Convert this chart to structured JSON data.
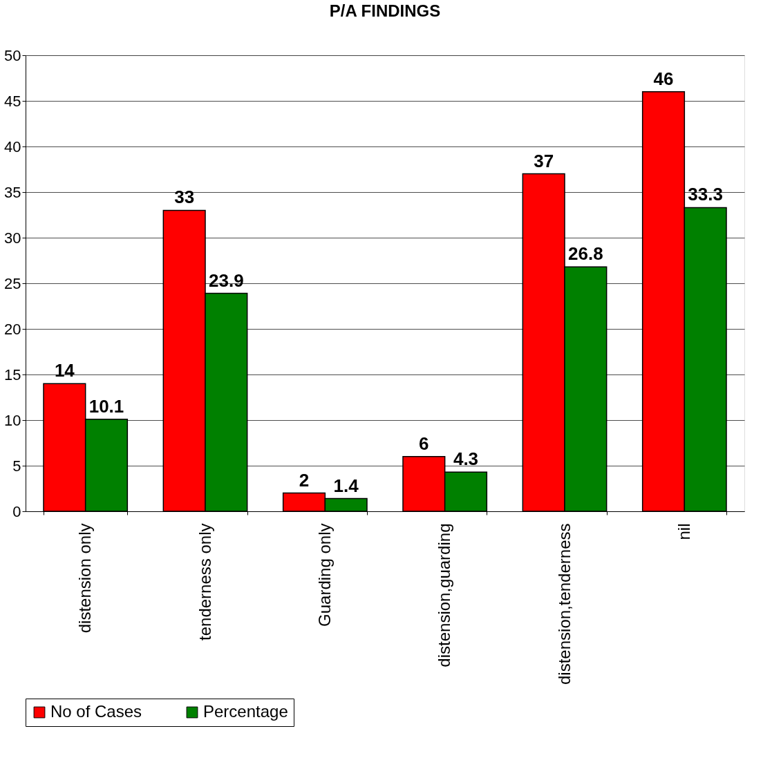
{
  "chart_data": {
    "type": "bar",
    "title": "P/A FINDINGS",
    "categories": [
      "distension only",
      "tenderness only",
      "Guarding only",
      "distension,guarding",
      "distension,tenderness",
      "nil"
    ],
    "series": [
      {
        "name": "No of Cases",
        "color": "#ff0000",
        "values": [
          14,
          33,
          2,
          6,
          37,
          46
        ]
      },
      {
        "name": "Percentage",
        "color": "#008000",
        "values": [
          10.1,
          23.9,
          1.4,
          4.3,
          26.8,
          33.3
        ]
      }
    ],
    "ylim": [
      0,
      50
    ],
    "yticks": [
      0,
      5,
      10,
      15,
      20,
      25,
      30,
      35,
      40,
      45,
      50
    ],
    "grid": "y",
    "legend": "bottom",
    "data_labels": true
  }
}
